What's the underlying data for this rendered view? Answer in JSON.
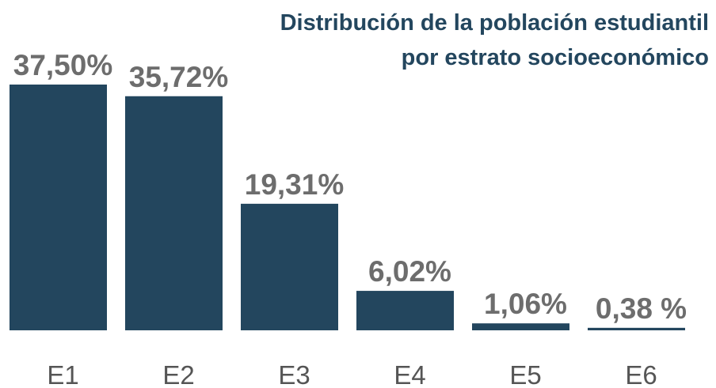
{
  "chart_data": {
    "type": "bar",
    "title": [
      "Distribución de la población estudiantil",
      "por estrato socioeconómico"
    ],
    "categories": [
      "E1",
      "E2",
      "E3",
      "E4",
      "E5",
      "E6"
    ],
    "values": [
      37.5,
      35.72,
      19.31,
      6.02,
      1.06,
      0.38
    ],
    "value_labels": [
      "37,50%",
      "35,72%",
      "19,31%",
      "6,02%",
      "1,06%",
      "0,38 %"
    ],
    "color": "#23465e"
  }
}
